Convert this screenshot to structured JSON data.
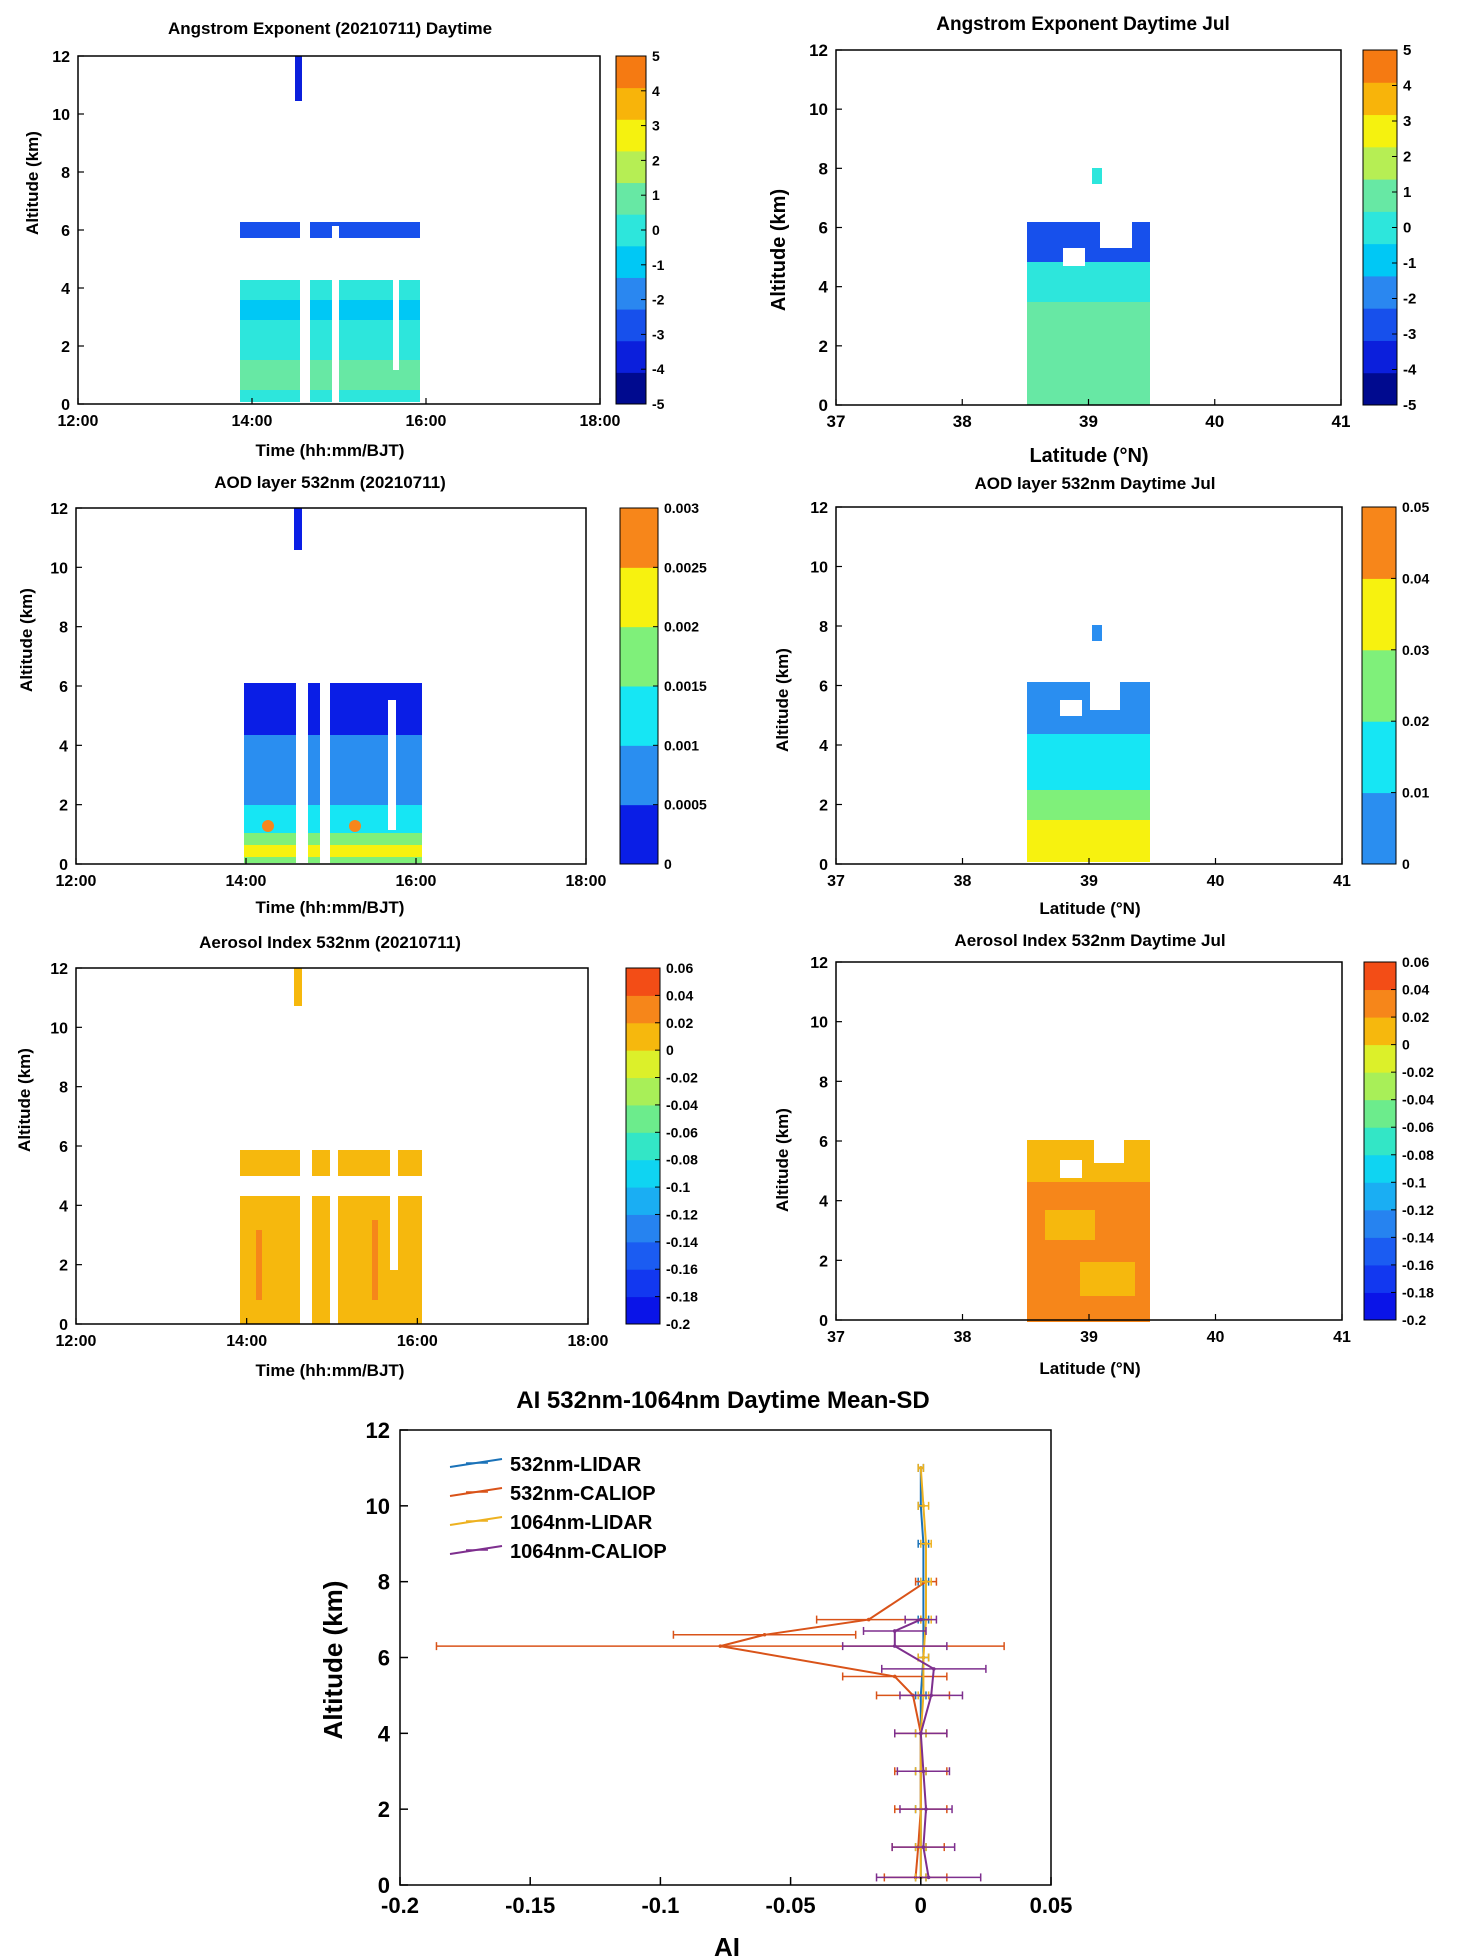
{
  "chart_data": [
    {
      "id": "ae-day",
      "type": "heatmap",
      "title": "Angstrom Exponent (20210711) Daytime",
      "xlabel": "Time (hh:mm/BJT)",
      "ylabel": "Altitude (km)",
      "xlim": [
        12,
        18
      ],
      "ylim": [
        0,
        12
      ],
      "xticks": [
        {
          "v": 12,
          "label": "12:00"
        },
        {
          "v": 14,
          "label": "14:00"
        },
        {
          "v": 16,
          "label": "16:00"
        },
        {
          "v": 18,
          "label": "18:00"
        }
      ],
      "yticks": [
        0,
        2,
        4,
        6,
        8,
        10,
        12
      ],
      "data_extent": {
        "x": [
          14,
          16
        ],
        "y": [
          0,
          6
        ]
      },
      "colorbar": {
        "min": -5,
        "max": 5,
        "ticks": [
          "-5",
          "-4",
          "-3",
          "-2",
          "-1",
          "0",
          "1",
          "2",
          "3",
          "4",
          "5"
        ],
        "colors": [
          "#000a8f",
          "#0b1fdc",
          "#1750ec",
          "#2a87f0",
          "#00c8f5",
          "#2de6dc",
          "#67e8a4",
          "#b6ee54",
          "#f5f20f",
          "#f8b40a",
          "#f57a12"
        ]
      }
    },
    {
      "id": "ae-jul",
      "type": "heatmap",
      "title": "Angstrom Exponent Daytime Jul",
      "xlabel": "Latitude (°N)",
      "ylabel": "Altitude (km)",
      "xlim": [
        37,
        41
      ],
      "ylim": [
        0,
        12
      ],
      "xticks": [
        {
          "v": 37,
          "label": "37"
        },
        {
          "v": 38,
          "label": "38"
        },
        {
          "v": 39,
          "label": "39"
        },
        {
          "v": 40,
          "label": "40"
        },
        {
          "v": 41,
          "label": "41"
        }
      ],
      "yticks": [
        0,
        2,
        4,
        6,
        8,
        10,
        12
      ],
      "data_extent": {
        "x": [
          38.5,
          39.5
        ],
        "y": [
          0,
          6.2
        ]
      },
      "colorbar": {
        "min": -5,
        "max": 5,
        "ticks": [
          "-5",
          "-4",
          "-3",
          "-2",
          "-1",
          "0",
          "1",
          "2",
          "3",
          "4",
          "5"
        ],
        "colors": [
          "#000a8f",
          "#0b1fdc",
          "#1750ec",
          "#2a87f0",
          "#00c8f5",
          "#2de6dc",
          "#67e8a4",
          "#b6ee54",
          "#f5f20f",
          "#f8b40a",
          "#f57a12"
        ]
      }
    },
    {
      "id": "aod-day",
      "type": "heatmap",
      "title": "AOD layer 532nm (20210711)",
      "xlabel": "Time (hh:mm/BJT)",
      "ylabel": "Altitude (km)",
      "xlim": [
        12,
        18
      ],
      "ylim": [
        0,
        12
      ],
      "xticks": [
        {
          "v": 12,
          "label": "12:00"
        },
        {
          "v": 14,
          "label": "14:00"
        },
        {
          "v": 16,
          "label": "16:00"
        },
        {
          "v": 18,
          "label": "18:00"
        }
      ],
      "yticks": [
        0,
        2,
        4,
        6,
        8,
        10,
        12
      ],
      "data_extent": {
        "x": [
          14,
          16
        ],
        "y": [
          0,
          6
        ]
      },
      "colorbar": {
        "min": 0,
        "max": 0.003,
        "ticks": [
          "0",
          "0.0005",
          "0.001",
          "0.0015",
          "0.002",
          "0.0025",
          "0.003"
        ],
        "colors": [
          "#0a1ee6",
          "#2a8ef0",
          "#16e6f4",
          "#7ff07a",
          "#f7f20f",
          "#f7861a"
        ]
      }
    },
    {
      "id": "aod-jul",
      "type": "heatmap",
      "title": "AOD layer 532nm Daytime Jul",
      "xlabel": "Latitude (°N)",
      "ylabel": "Altitude (km)",
      "xlim": [
        37,
        41
      ],
      "ylim": [
        0,
        12
      ],
      "xticks": [
        {
          "v": 37,
          "label": "37"
        },
        {
          "v": 38,
          "label": "38"
        },
        {
          "v": 39,
          "label": "39"
        },
        {
          "v": 40,
          "label": "40"
        },
        {
          "v": 41,
          "label": "41"
        }
      ],
      "yticks": [
        0,
        2,
        4,
        6,
        8,
        10,
        12
      ],
      "data_extent": {
        "x": [
          38.5,
          39.5
        ],
        "y": [
          0,
          6.2
        ]
      },
      "colorbar": {
        "min": 0,
        "max": 0.05,
        "ticks": [
          "0",
          "0.01",
          "0.02",
          "0.03",
          "0.04",
          "0.05"
        ],
        "colors": [
          "#2a8ef0",
          "#16e6f4",
          "#7ff07a",
          "#f7f20f",
          "#f7861a"
        ]
      }
    },
    {
      "id": "ai-day",
      "type": "heatmap",
      "title": "Aerosol Index 532nm (20210711)",
      "xlabel": "Time (hh:mm/BJT)",
      "ylabel": "Altitude (km)",
      "xlim": [
        12,
        18
      ],
      "ylim": [
        0,
        12
      ],
      "xticks": [
        {
          "v": 12,
          "label": "12:00"
        },
        {
          "v": 14,
          "label": "14:00"
        },
        {
          "v": 16,
          "label": "16:00"
        },
        {
          "v": 18,
          "label": "18:00"
        }
      ],
      "yticks": [
        0,
        2,
        4,
        6,
        8,
        10,
        12
      ],
      "data_extent": {
        "x": [
          14,
          16
        ],
        "y": [
          0,
          6
        ]
      },
      "colorbar": {
        "min": -0.2,
        "max": 0.06,
        "ticks": [
          "-0.2",
          "-0.18",
          "-0.16",
          "-0.14",
          "-0.12",
          "-0.1",
          "-0.08",
          "-0.06",
          "-0.04",
          "-0.02",
          "0",
          "0.02",
          "0.04",
          "0.06"
        ],
        "colors": [
          "#0a14e8",
          "#1238f0",
          "#1b5cf2",
          "#2683f0",
          "#1aaef3",
          "#0fd4f2",
          "#33e6c6",
          "#6cec8c",
          "#a8ef58",
          "#dcf02a",
          "#f6b80d",
          "#f6861a",
          "#f34d16"
        ]
      }
    },
    {
      "id": "ai-jul",
      "type": "heatmap",
      "title": "Aerosol Index 532nm Daytime Jul",
      "xlabel": "Latitude (°N)",
      "ylabel": "Altitude (km)",
      "xlim": [
        37,
        41
      ],
      "ylim": [
        0,
        12
      ],
      "xticks": [
        {
          "v": 37,
          "label": "37"
        },
        {
          "v": 38,
          "label": "38"
        },
        {
          "v": 39,
          "label": "39"
        },
        {
          "v": 40,
          "label": "40"
        },
        {
          "v": 41,
          "label": "41"
        }
      ],
      "yticks": [
        0,
        2,
        4,
        6,
        8,
        10,
        12
      ],
      "data_extent": {
        "x": [
          38.5,
          39.5
        ],
        "y": [
          0,
          6.2
        ]
      },
      "colorbar": {
        "min": -0.2,
        "max": 0.06,
        "ticks": [
          "-0.2",
          "-0.18",
          "-0.16",
          "-0.14",
          "-0.12",
          "-0.1",
          "-0.08",
          "-0.06",
          "-0.04",
          "-0.02",
          "0",
          "0.02",
          "0.04",
          "0.06"
        ],
        "colors": [
          "#0a14e8",
          "#1238f0",
          "#1b5cf2",
          "#2683f0",
          "#1aaef3",
          "#0fd4f2",
          "#33e6c6",
          "#6cec8c",
          "#a8ef58",
          "#dcf02a",
          "#f6b80d",
          "#f6861a",
          "#f34d16"
        ]
      }
    },
    {
      "id": "ai-profile",
      "type": "line",
      "title": "AI 532nm-1064nm Daytime Mean-SD",
      "xlabel": "AI",
      "ylabel": "Altitude (km)",
      "xlim": [
        -0.2,
        0.05
      ],
      "ylim": [
        0,
        12
      ],
      "xticks": [
        {
          "v": -0.2,
          "label": "-0.2"
        },
        {
          "v": -0.15,
          "label": "-0.15"
        },
        {
          "v": -0.1,
          "label": "-0.1"
        },
        {
          "v": -0.05,
          "label": "-0.05"
        },
        {
          "v": 0,
          "label": "0"
        },
        {
          "v": 0.05,
          "label": "0.05"
        }
      ],
      "yticks": [
        0,
        2,
        4,
        6,
        8,
        10,
        12
      ],
      "legend_position": "top-left",
      "series": [
        {
          "name": "532nm-LIDAR",
          "color": "#1a72b8",
          "points": [
            [
              0.0,
              0.2
            ],
            [
              0.0,
              1.0
            ],
            [
              0.0,
              2.0
            ],
            [
              0.0,
              3.0
            ],
            [
              0.0,
              4.0
            ],
            [
              0.0,
              5.0
            ],
            [
              0.001,
              6.0
            ],
            [
              0.001,
              7.0
            ],
            [
              0.001,
              8.0
            ],
            [
              0.001,
              9.0
            ],
            [
              0.0,
              10.0
            ],
            [
              0.0,
              11.0
            ]
          ],
          "sd": [
            0.002,
            0.002,
            0.002,
            0.002,
            0.002,
            0.002,
            0.002,
            0.002,
            0.002,
            0.002,
            0.001,
            0.001
          ]
        },
        {
          "name": "532nm-CALIOP",
          "color": "#d95319",
          "points": [
            [
              -0.002,
              0.2
            ],
            [
              -0.001,
              1.0
            ],
            [
              0.0,
              2.0
            ],
            [
              0.0,
              3.0
            ],
            [
              0.0,
              4.0
            ],
            [
              -0.003,
              5.0
            ],
            [
              -0.01,
              5.5
            ],
            [
              -0.077,
              6.3
            ],
            [
              -0.06,
              6.6
            ],
            [
              -0.02,
              7.0
            ],
            [
              0.002,
              8.0
            ]
          ],
          "sd": [
            0.012,
            0.01,
            0.01,
            0.01,
            0.01,
            0.014,
            0.02,
            0.109,
            0.035,
            0.02,
            0.004
          ]
        },
        {
          "name": "1064nm-LIDAR",
          "color": "#edb120",
          "points": [
            [
              0.0,
              0.2
            ],
            [
              0.0,
              1.0
            ],
            [
              0.0,
              2.0
            ],
            [
              0.0,
              3.0
            ],
            [
              0.0,
              4.0
            ],
            [
              0.001,
              5.0
            ],
            [
              0.001,
              6.0
            ],
            [
              0.002,
              7.0
            ],
            [
              0.002,
              8.0
            ],
            [
              0.002,
              9.0
            ],
            [
              0.001,
              10.0
            ],
            [
              0.0,
              11.0
            ]
          ],
          "sd": [
            0.002,
            0.002,
            0.002,
            0.002,
            0.002,
            0.002,
            0.002,
            0.002,
            0.002,
            0.002,
            0.002,
            0.001
          ]
        },
        {
          "name": "1064nm-CALIOP",
          "color": "#7e2f8e",
          "points": [
            [
              0.003,
              0.2
            ],
            [
              0.001,
              1.0
            ],
            [
              0.002,
              2.0
            ],
            [
              0.001,
              3.0
            ],
            [
              0.0,
              4.0
            ],
            [
              0.004,
              5.0
            ],
            [
              0.005,
              5.7
            ],
            [
              -0.01,
              6.3
            ],
            [
              -0.01,
              6.7
            ],
            [
              0.0,
              7.0
            ]
          ],
          "sd": [
            0.02,
            0.012,
            0.01,
            0.01,
            0.01,
            0.012,
            0.02,
            0.02,
            0.012,
            0.006
          ]
        }
      ]
    }
  ]
}
